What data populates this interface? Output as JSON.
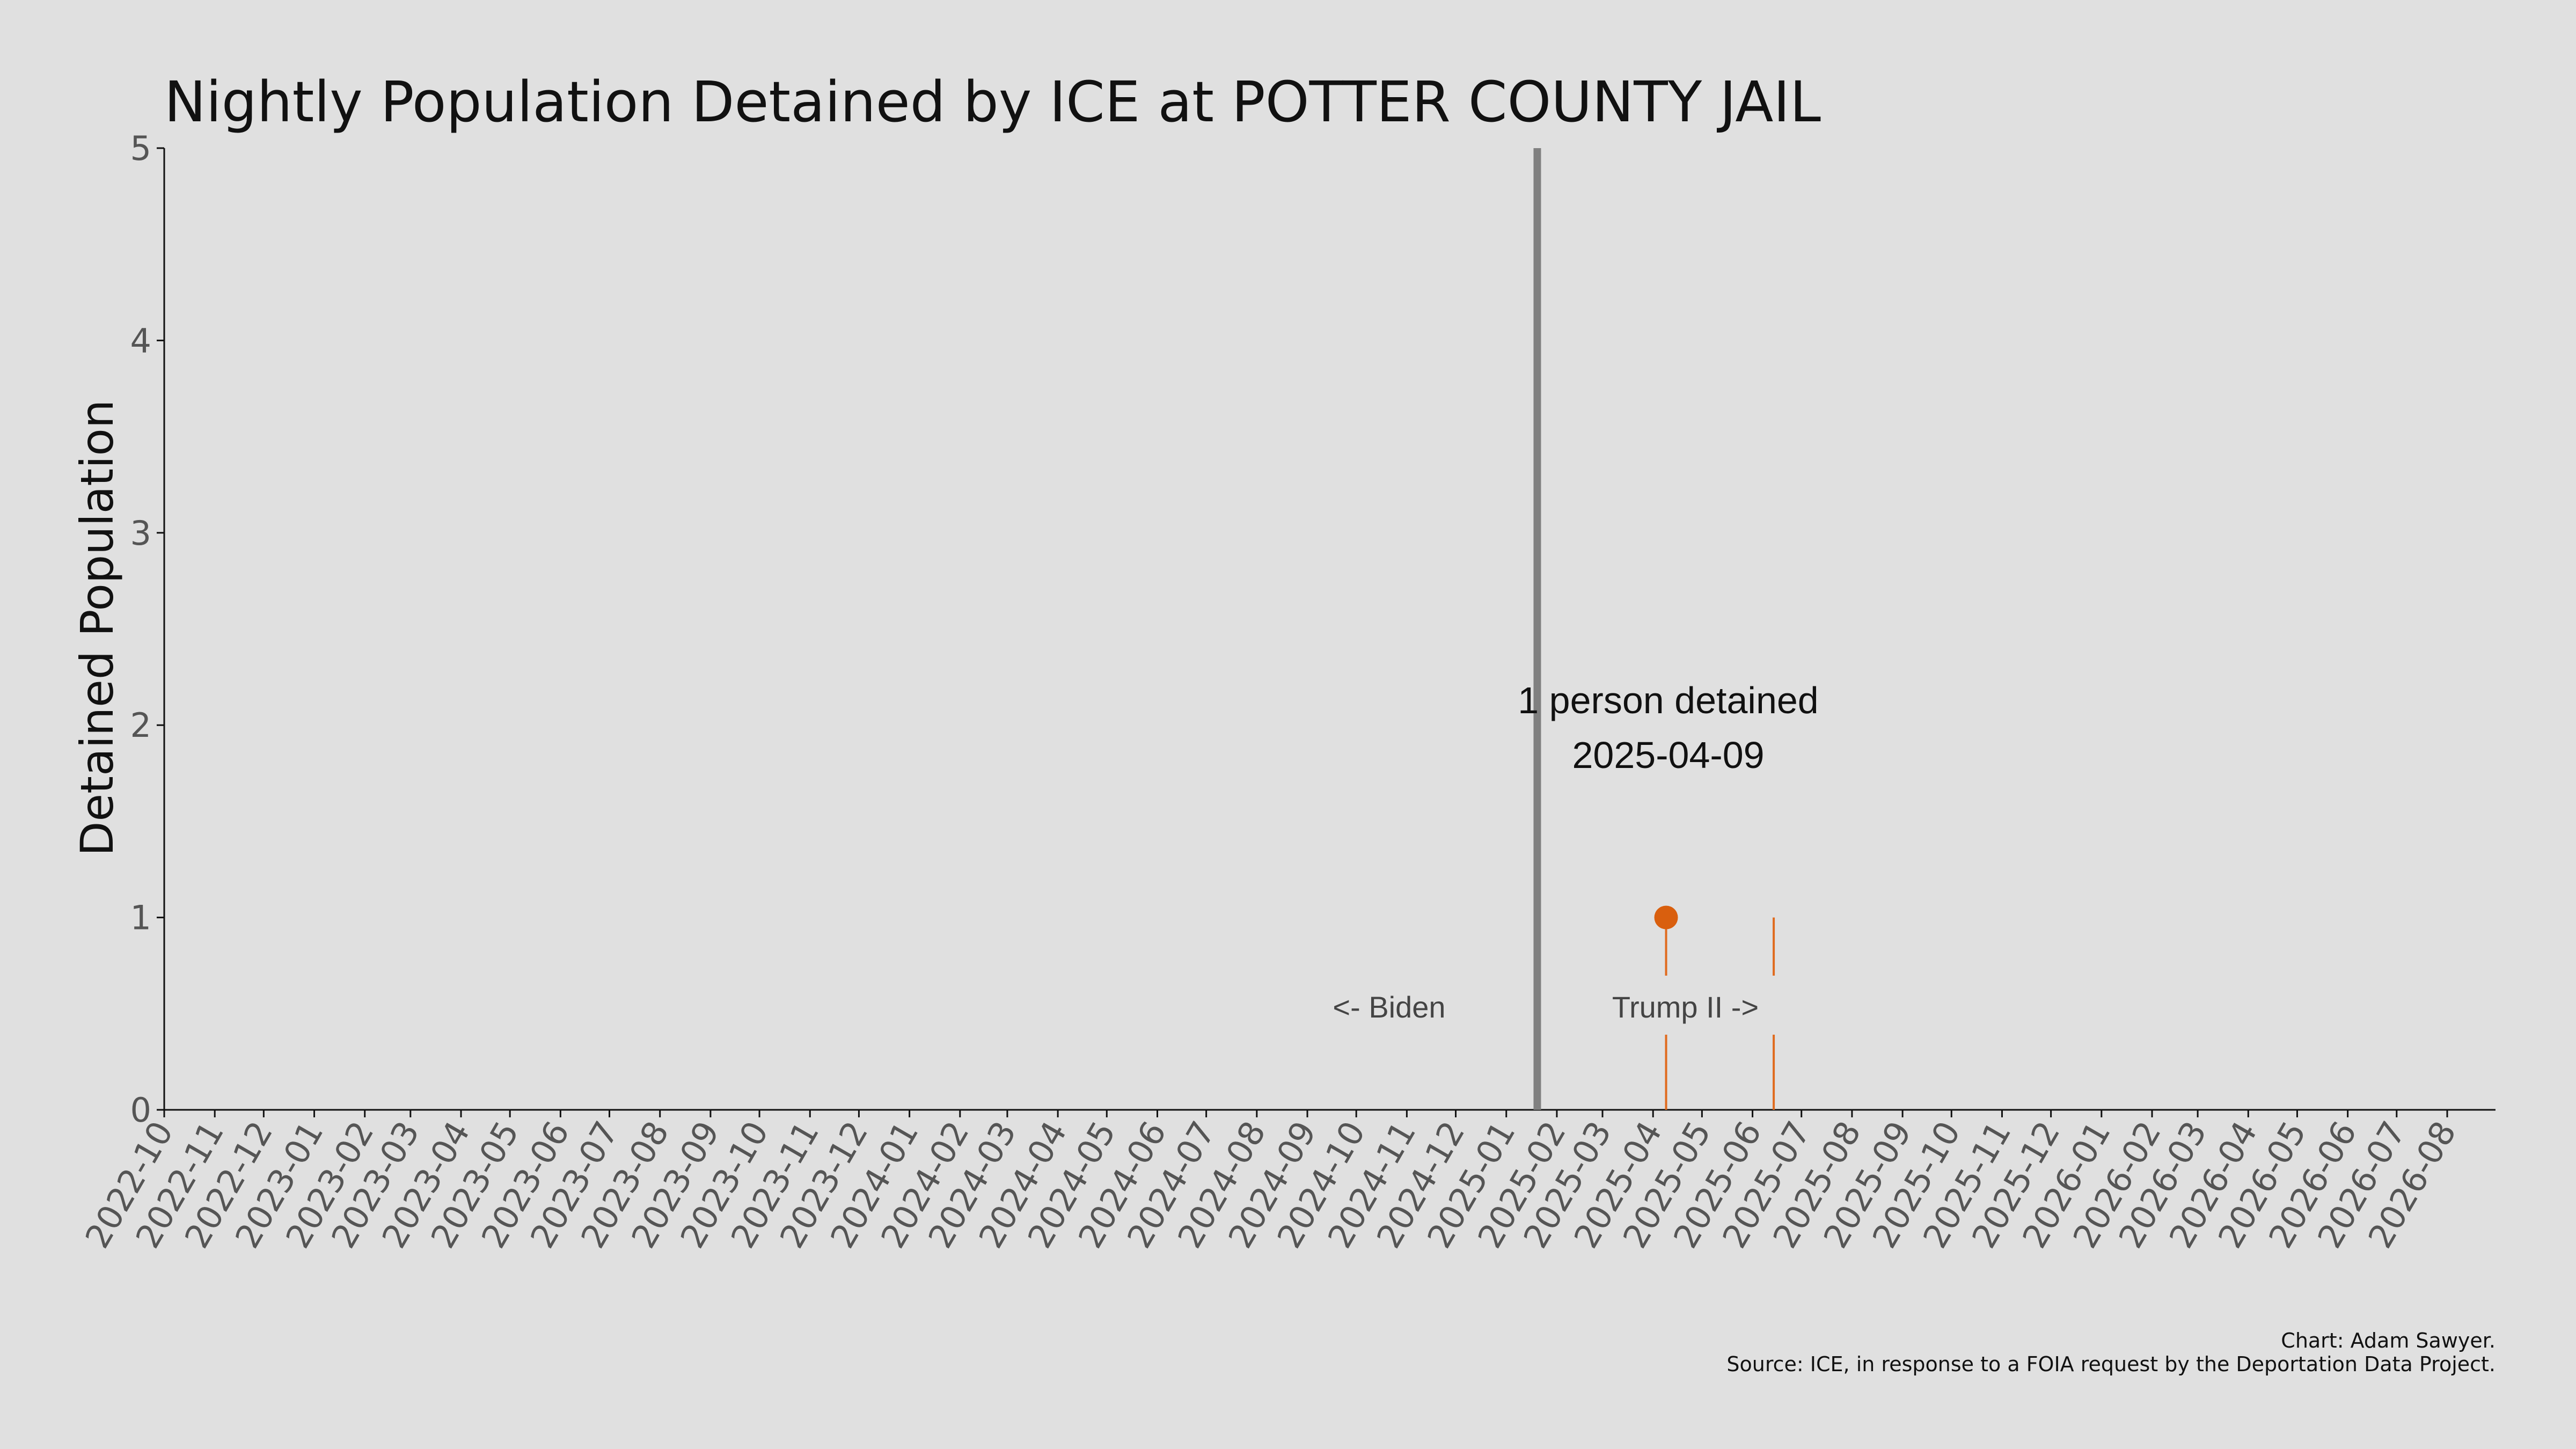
{
  "chart_data": {
    "type": "line",
    "title": "Nightly Population Detained by ICE at POTTER COUNTY JAIL",
    "ylabel": "Detained Population",
    "xlabel": "",
    "ylim": [
      0,
      5
    ],
    "yticks": [
      0,
      1,
      2,
      3,
      4,
      5
    ],
    "xlim": [
      "2022-10-01",
      "2026-08-01"
    ],
    "x_tick_labels": [
      "2022-10",
      "2022-11",
      "2022-12",
      "2023-01",
      "2023-02",
      "2023-03",
      "2023-04",
      "2023-05",
      "2023-06",
      "2023-07",
      "2023-08",
      "2023-09",
      "2023-10",
      "2023-11",
      "2023-12",
      "2024-01",
      "2024-02",
      "2024-03",
      "2024-04",
      "2024-05",
      "2024-06",
      "2024-07",
      "2024-08",
      "2024-09",
      "2024-10",
      "2024-11",
      "2024-12",
      "2025-01",
      "2025-02",
      "2025-03",
      "2025-04",
      "2025-05",
      "2025-06",
      "2025-07",
      "2025-08",
      "2025-09",
      "2025-10",
      "2025-11",
      "2025-12",
      "2026-01",
      "2026-02",
      "2026-03",
      "2026-04",
      "2026-05",
      "2026-06",
      "2026-07",
      "2026-08"
    ],
    "grid": false,
    "series": [
      {
        "color": "#e06b1f",
        "points": [
          {
            "x": "2025-04-09",
            "y": 1
          },
          {
            "x": "2025-06-14",
            "y": 1
          }
        ]
      }
    ],
    "highlight": {
      "x": "2025-04-09",
      "y": 1,
      "color": "#d95f0e"
    },
    "annotation": {
      "line1": "1 person detained",
      "line2": "2025-04-09"
    },
    "divider": {
      "x": "2025-01-20",
      "color": "#808080",
      "left_label": "<- Biden",
      "right_label": "Trump II ->"
    },
    "credits": {
      "line1": "Chart: Adam Sawyer.",
      "line2": "Source: ICE, in response to a FOIA request by the Deportation Data Project."
    }
  }
}
